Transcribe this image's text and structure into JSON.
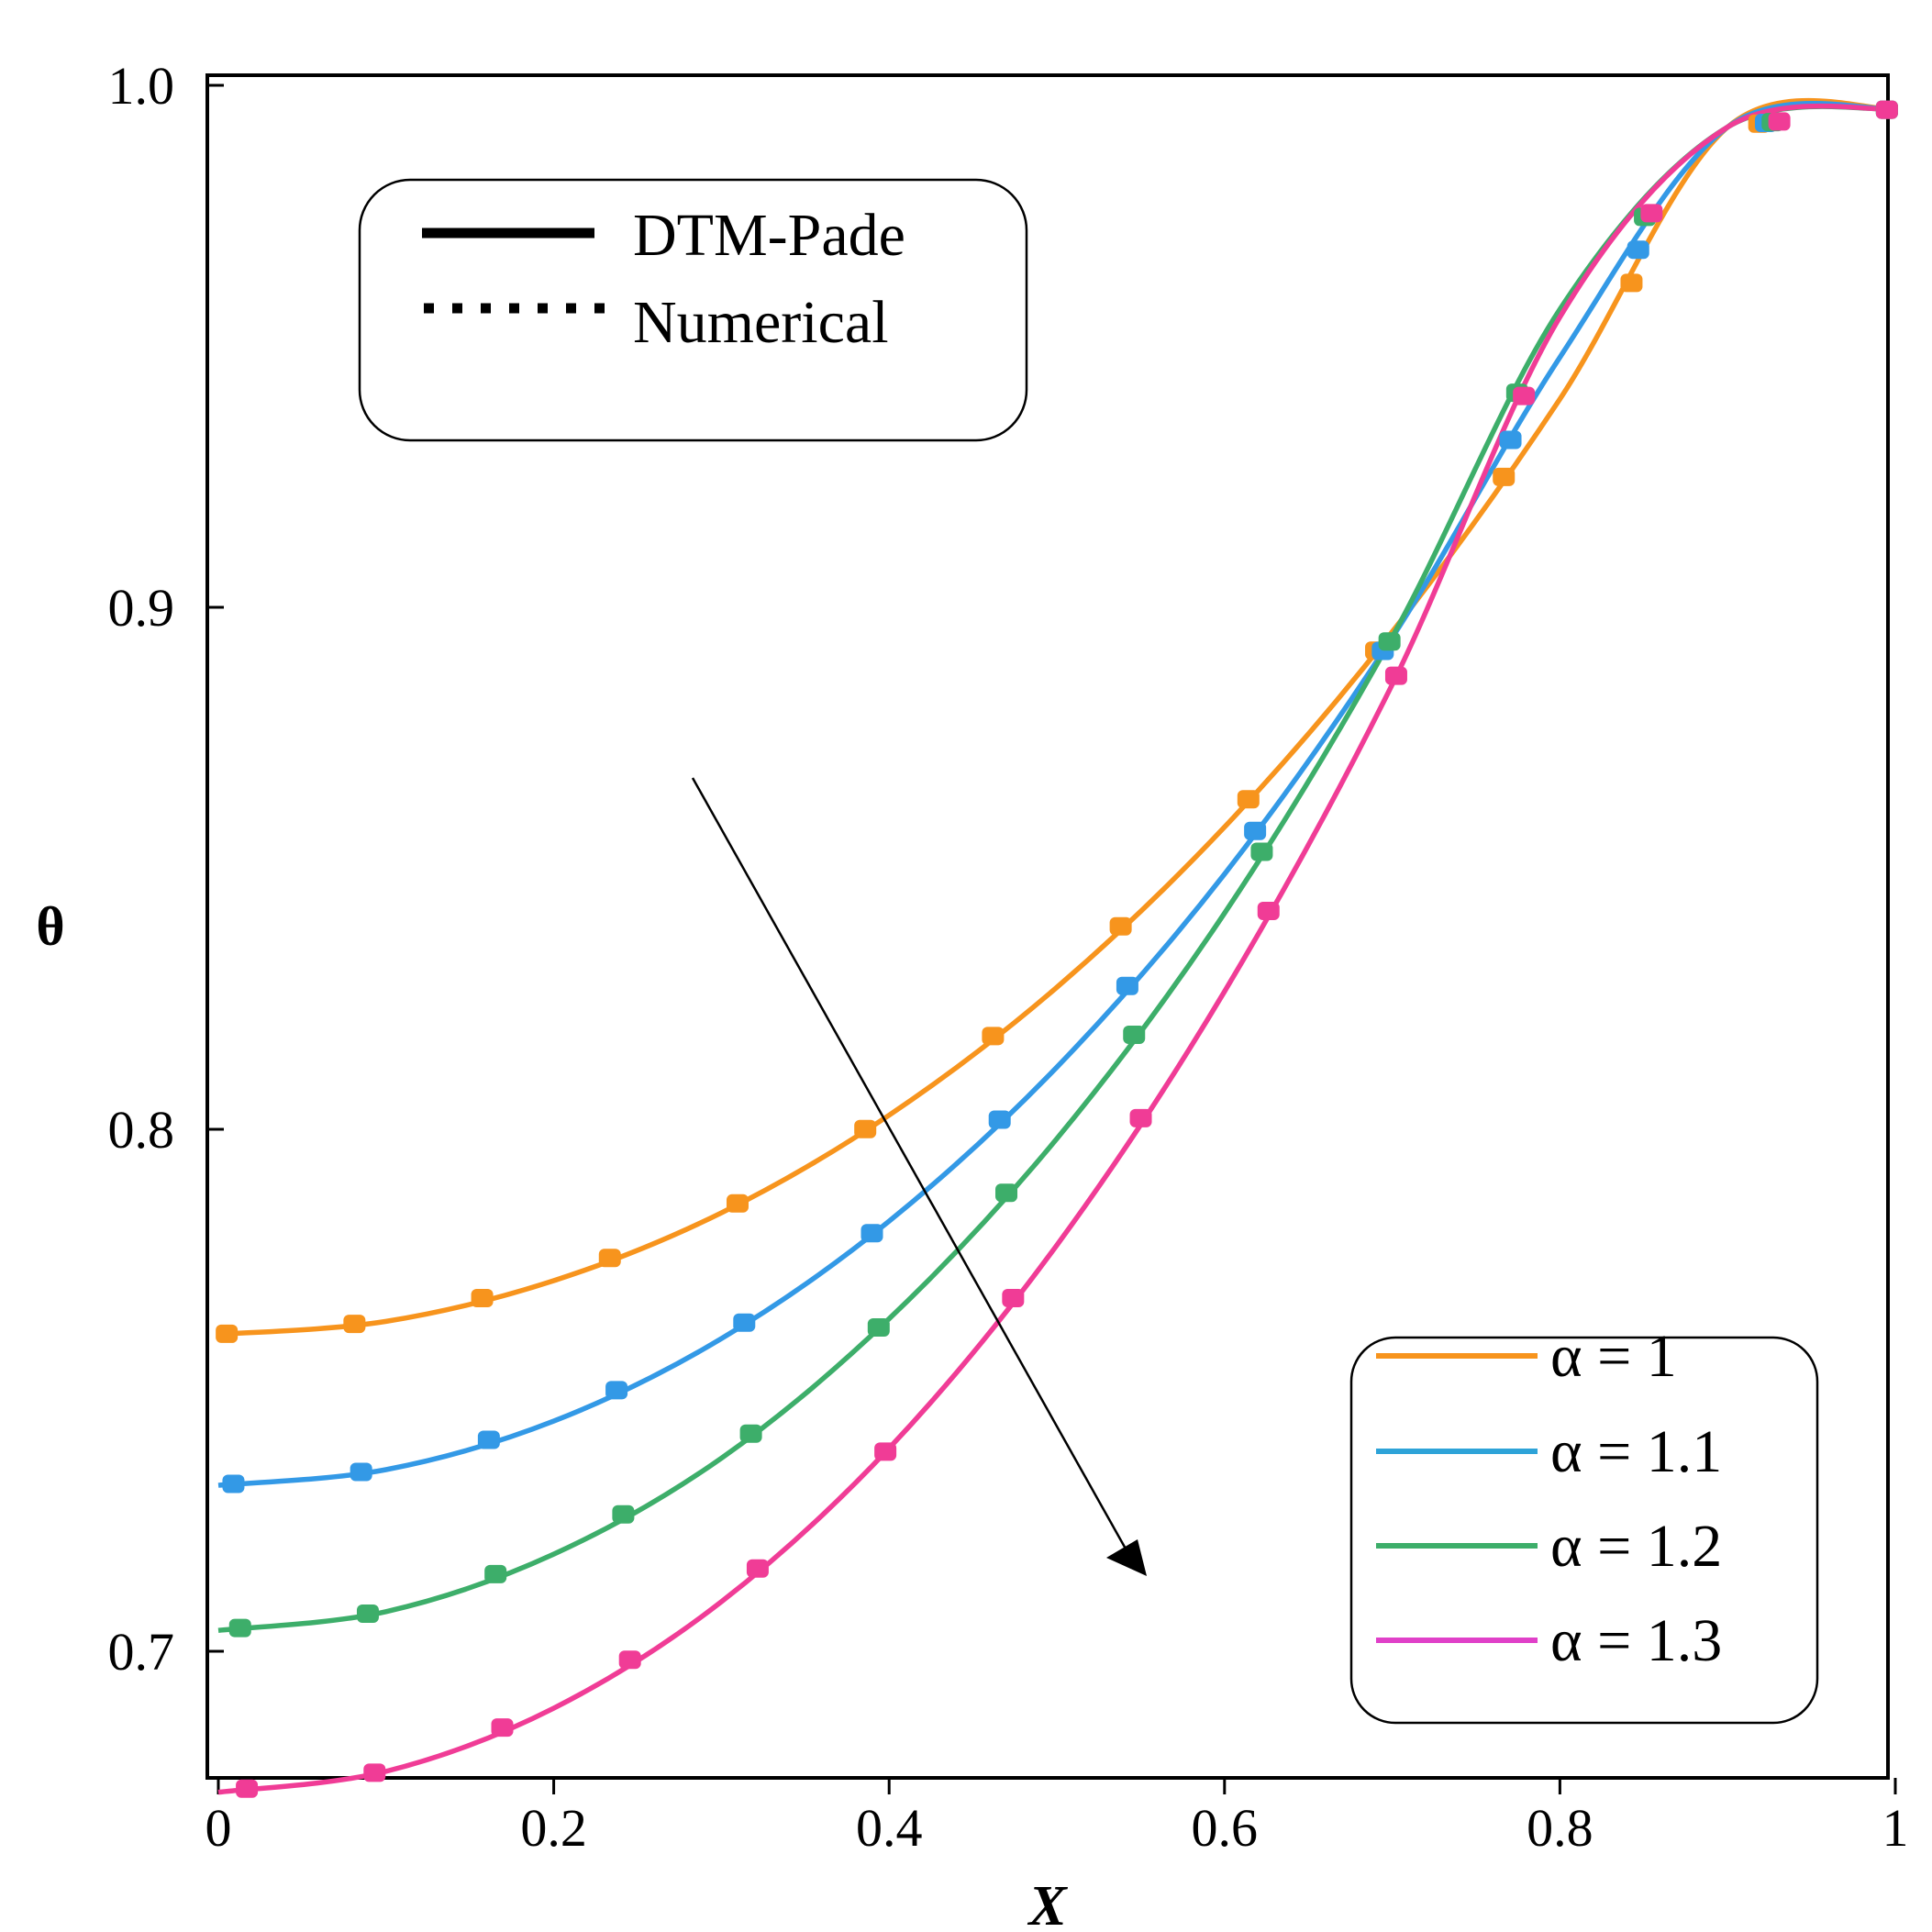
{
  "chart_data": {
    "type": "line",
    "title": "",
    "xlabel": "X",
    "ylabel": "θ",
    "xlim": [
      0,
      1
    ],
    "ylim": [
      0.667,
      0.99
    ],
    "x_ticks": [
      "0",
      "0.2",
      "0.4",
      "0.6",
      "0.8",
      "1"
    ],
    "y_ticks": [
      "0.7",
      "0.8",
      "0.9",
      "1.0"
    ],
    "method_legend": {
      "solid": "DTM-Pade",
      "dotted": "Numerical"
    },
    "legend_position": "bottom-right",
    "arrow_note": "increasing α",
    "series": [
      {
        "name": "α = 1",
        "color": "#F7941D",
        "x": [
          0,
          0.1,
          0.2,
          0.3,
          0.4,
          0.5,
          0.6,
          0.7,
          0.8,
          0.9,
          1.0
        ],
        "y": [
          0.7607,
          0.7632,
          0.771,
          0.784,
          0.8027,
          0.8272,
          0.8579,
          0.8953,
          0.9399,
          0.992,
          0.9955
        ]
      },
      {
        "name": "α = 1.1",
        "color": "#3399E6",
        "x": [
          0,
          0.1,
          0.2,
          0.3,
          0.4,
          0.5,
          0.6,
          0.7,
          0.8,
          0.9,
          1.0
        ],
        "y": [
          0.7318,
          0.7348,
          0.7441,
          0.7599,
          0.7824,
          0.8119,
          0.8489,
          0.8942,
          0.9479,
          0.992,
          0.9955
        ]
      },
      {
        "name": "α = 1.2",
        "color": "#3DAE6A",
        "x": [
          0,
          0.1,
          0.2,
          0.3,
          0.4,
          0.5,
          0.6,
          0.7,
          0.8,
          0.9,
          1.0
        ],
        "y": [
          0.704,
          0.7076,
          0.7186,
          0.737,
          0.7637,
          0.7982,
          0.8414,
          0.8943,
          0.9571,
          0.992,
          0.9955
        ]
      },
      {
        "name": "α = 1.3",
        "color": "#F03C96",
        "x": [
          0,
          0.1,
          0.2,
          0.3,
          0.4,
          0.5,
          0.6,
          0.7,
          0.8,
          0.9,
          1.0
        ],
        "y": [
          0.673,
          0.677,
          0.6891,
          0.7095,
          0.7389,
          0.7778,
          0.8264,
          0.8852,
          0.9556,
          0.992,
          0.9955
        ]
      }
    ]
  },
  "legend_swatch_colors": [
    "#F7941D",
    "#2EA3D8",
    "#3DAE6A",
    "#E040C8"
  ]
}
